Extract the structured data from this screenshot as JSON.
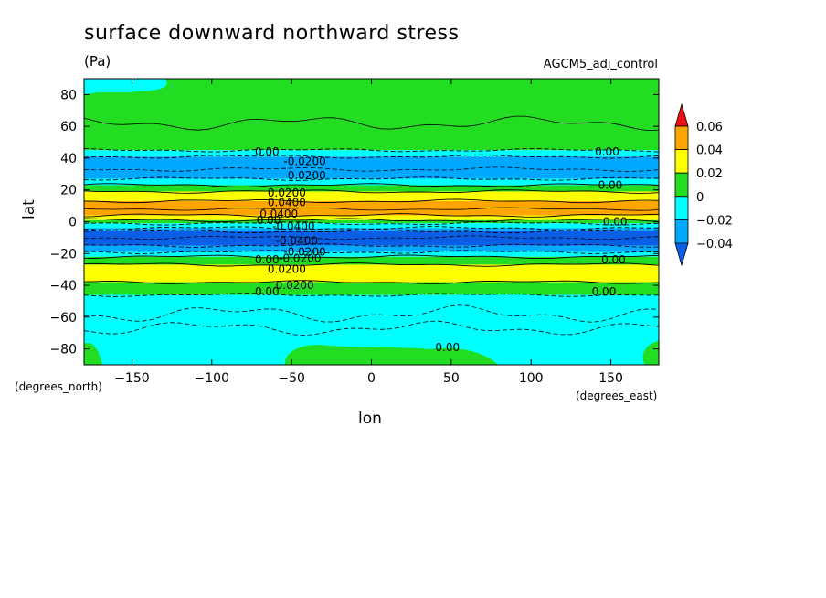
{
  "chart_data": {
    "type": "heatmap",
    "title": "surface downward northward stress",
    "units": "(Pa)",
    "dataset": "AGCM5_adj_control",
    "xlabel": "lon",
    "ylabel": "lat",
    "x_unit_label": "(degrees_east)",
    "y_unit_label": "(degrees_north)",
    "xlim": [
      -180,
      180
    ],
    "ylim": [
      -90,
      90
    ],
    "x_ticks": [
      -150,
      -100,
      -50,
      0,
      50,
      100,
      150
    ],
    "y_ticks": [
      -80,
      -60,
      -40,
      -20,
      0,
      20,
      40,
      60,
      80
    ],
    "colorbar": {
      "levels": [
        -0.04,
        -0.02,
        0,
        0.02,
        0.04,
        0.06
      ],
      "labels": [
        "-0.04",
        "-0.02",
        "0",
        "0.02",
        "0.04",
        "0.06"
      ],
      "colors": [
        "#0a5fe6",
        "#00a8ff",
        "#00ffff",
        "#22dd22",
        "#ffff00",
        "#ffa500",
        "#ee1111"
      ]
    },
    "bands": [
      {
        "lat_top": 90,
        "lat_bottom": 45,
        "value_range": "0 to 0.02",
        "color": "#22dd22"
      },
      {
        "lat_top": 45,
        "lat_bottom": 41,
        "value_range": "-0.02 to 0",
        "color": "#00ffff"
      },
      {
        "lat_top": 41,
        "lat_bottom": 27,
        "value_range": "-0.04 to -0.02",
        "color": "#00a8ff"
      },
      {
        "lat_top": 27,
        "lat_bottom": 23,
        "value_range": "-0.02 to 0",
        "color": "#00ffff"
      },
      {
        "lat_top": 23,
        "lat_bottom": 19,
        "value_range": "0 to 0.02",
        "color": "#22dd22"
      },
      {
        "lat_top": 19,
        "lat_bottom": 13,
        "value_range": "0.02 to 0.04",
        "color": "#ffff00"
      },
      {
        "lat_top": 13,
        "lat_bottom": 4,
        "value_range": "0.04 to 0.06",
        "color": "#ffa500"
      },
      {
        "lat_top": 4,
        "lat_bottom": 1,
        "value_range": "0.02 to 0.04",
        "color": "#ffff00"
      },
      {
        "lat_top": 1,
        "lat_bottom": -1,
        "value_range": "0 to 0.02",
        "color": "#22dd22"
      },
      {
        "lat_top": -1,
        "lat_bottom": -4,
        "value_range": "-0.02 to 0",
        "color": "#00ffff"
      },
      {
        "lat_top": -4,
        "lat_bottom": -6,
        "value_range": "-0.04 to -0.02",
        "color": "#00a8ff"
      },
      {
        "lat_top": -6,
        "lat_bottom": -15,
        "value_range": "< -0.04",
        "color": "#0a5fe6"
      },
      {
        "lat_top": -15,
        "lat_bottom": -19,
        "value_range": "-0.04 to -0.02",
        "color": "#00a8ff"
      },
      {
        "lat_top": -19,
        "lat_bottom": -22,
        "value_range": "-0.02 to 0",
        "color": "#00ffff"
      },
      {
        "lat_top": -22,
        "lat_bottom": -27,
        "value_range": "0 to 0.02",
        "color": "#22dd22"
      },
      {
        "lat_top": -27,
        "lat_bottom": -38,
        "value_range": "0.02 to 0.04",
        "color": "#ffff00"
      },
      {
        "lat_top": -38,
        "lat_bottom": -46,
        "value_range": "0 to 0.02",
        "color": "#22dd22"
      },
      {
        "lat_top": -46,
        "lat_bottom": -90,
        "value_range": "-0.02 to 0",
        "color": "#00ffff"
      }
    ],
    "contour_labels": [
      {
        "text": "0.00",
        "lon": -73,
        "lat": 44
      },
      {
        "text": "0.00",
        "lon": 140,
        "lat": 44
      },
      {
        "text": "-0.0200",
        "lon": -55,
        "lat": 38
      },
      {
        "text": "-0.0200",
        "lon": -55,
        "lat": 29
      },
      {
        "text": "0.00",
        "lon": 142,
        "lat": 23
      },
      {
        "text": "0.0200",
        "lon": -65,
        "lat": 18
      },
      {
        "text": "0.0400",
        "lon": -65,
        "lat": 12
      },
      {
        "text": "0.0400",
        "lon": -70,
        "lat": 5
      },
      {
        "text": "0.00",
        "lon": -72,
        "lat": 1
      },
      {
        "text": "-0.0400",
        "lon": -62,
        "lat": -3
      },
      {
        "text": "-0.0400",
        "lon": -60,
        "lat": -12
      },
      {
        "text": "0.00",
        "lon": 145,
        "lat": 0
      },
      {
        "text": "-0.0200",
        "lon": -55,
        "lat": -19
      },
      {
        "text": "-0.0200",
        "lon": -58,
        "lat": -23
      },
      {
        "text": "0.00",
        "lon": -73,
        "lat": -24
      },
      {
        "text": "0.00",
        "lon": 144,
        "lat": -24
      },
      {
        "text": "0.0200",
        "lon": -65,
        "lat": -30
      },
      {
        "text": "0.0200",
        "lon": -60,
        "lat": -40
      },
      {
        "text": "0.00",
        "lon": -73,
        "lat": -44
      },
      {
        "text": "0.00",
        "lon": 138,
        "lat": -44
      },
      {
        "text": "0.00",
        "lon": 40,
        "lat": -79
      }
    ]
  }
}
